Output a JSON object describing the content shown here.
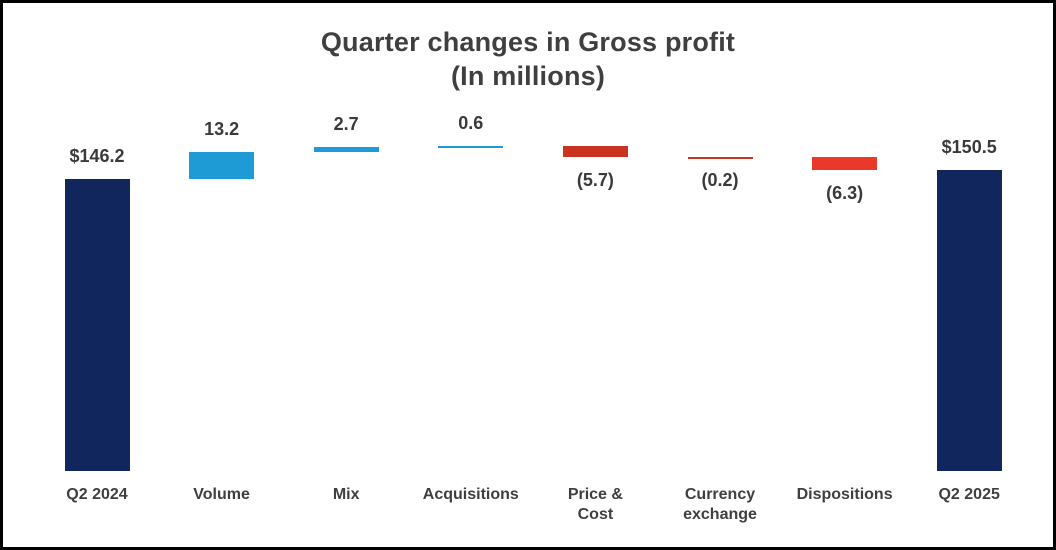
{
  "chart": {
    "title": "Quarter changes in Gross profit",
    "subtitle": "(In millions)"
  },
  "chart_data": {
    "type": "waterfall",
    "title": "Quarter changes in Gross profit",
    "subtitle": "(In millions)",
    "unit": "millions",
    "categories": [
      "Q2 2024",
      "Volume",
      "Mix",
      "Acquisitions",
      "Price & Cost",
      "Currency exchange",
      "Dispositions",
      "Q2 2025"
    ],
    "bars": [
      {
        "category": "Q2 2024",
        "value": 146.2,
        "label": "$146.2",
        "role": "total",
        "color": "#12265e",
        "label_position": "above"
      },
      {
        "category": "Volume",
        "value": 13.2,
        "label": "13.2",
        "role": "increase",
        "color": "#1e9ad5",
        "label_position": "above"
      },
      {
        "category": "Mix",
        "value": 2.7,
        "label": "2.7",
        "role": "increase",
        "color": "#1e9ad5",
        "label_position": "above"
      },
      {
        "category": "Acquisitions",
        "value": 0.6,
        "label": "0.6",
        "role": "increase",
        "color": "#1e9ad5",
        "label_position": "above"
      },
      {
        "category": "Price & Cost",
        "category_display": "Price &\nCost",
        "value": -5.7,
        "label": "(5.7)",
        "role": "decrease",
        "color": "#c93420",
        "label_position": "below"
      },
      {
        "category": "Currency exchange",
        "category_display": "Currency\nexchange",
        "value": -0.2,
        "label": "(0.2)",
        "role": "decrease",
        "color": "#c93420",
        "label_position": "below"
      },
      {
        "category": "Dispositions",
        "value": -6.3,
        "label": "(6.3)",
        "role": "decrease",
        "color": "#e8392b",
        "label_position": "below"
      },
      {
        "category": "Q2 2025",
        "value": 150.5,
        "label": "$150.5",
        "role": "total",
        "color": "#12265e",
        "label_position": "above"
      }
    ],
    "totals": {
      "start": 146.2,
      "end": 150.5
    },
    "ylim": [
      0,
      170
    ],
    "grid": false,
    "legend": "none",
    "colors": {
      "total": "#12265e",
      "increase": "#1e9ad5",
      "decrease": "#c93420",
      "decrease_alt": "#e8392b",
      "text": "#3f3f3f"
    }
  }
}
